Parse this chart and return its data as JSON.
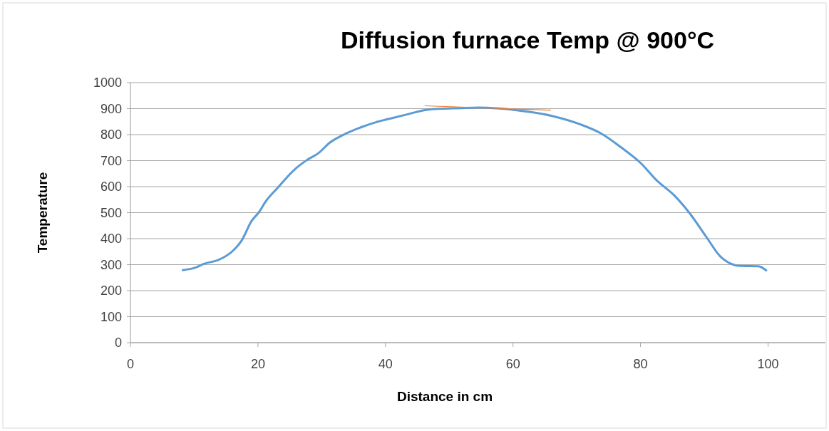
{
  "chart_data": {
    "type": "line",
    "title": "Diffusion furnace Temp @ 900°C",
    "xlabel": "Distance in cm",
    "ylabel": "Temperature",
    "xlim": [
      0,
      109
    ],
    "xticks": [
      0,
      20,
      40,
      60,
      80,
      100
    ],
    "ylim": [
      0,
      1000
    ],
    "yticks": [
      0,
      100,
      200,
      300,
      400,
      500,
      600,
      700,
      800,
      900,
      1000
    ],
    "grid": "y",
    "line_style": "solid",
    "marker": "none",
    "series": [
      {
        "color": "#5b9bd5",
        "x": [
          8.2,
          10.1,
          11.6,
          13.8,
          16.1,
          17.5,
          19.0,
          20.1,
          21.3,
          23.1,
          25.7,
          27.6,
          29.5,
          31.3,
          33.2,
          35.8,
          38.4,
          40.6,
          43.6,
          46.6,
          51.8,
          54.6,
          60.6,
          66.1,
          70.5,
          73.7,
          76.9,
          80.1,
          82.5,
          85.3,
          87.7,
          90.5,
          92.5,
          95.7,
          98.5,
          99.7
        ],
        "values": [
          279,
          288,
          304,
          318,
          354,
          395,
          468,
          500,
          546,
          596,
          665,
          701,
          729,
          770,
          797,
          825,
          847,
          861,
          879,
          896,
          902,
          904,
          894,
          872,
          840,
          806,
          752,
          689,
          625,
          566,
          498,
          400,
          332,
          295,
          294,
          278
        ]
      },
      {
        "color": "#ed7d31",
        "x": [
          46.2,
          65.9
        ],
        "values": [
          911,
          894
        ]
      }
    ]
  }
}
